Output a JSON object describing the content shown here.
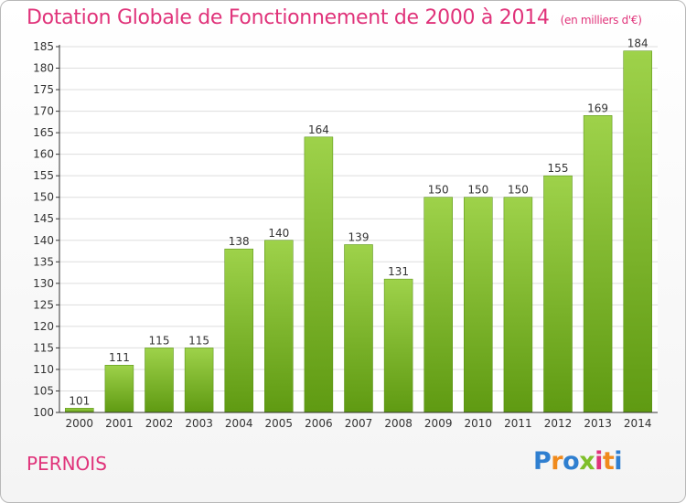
{
  "header": {
    "title": "Dotation Globale de Fonctionnement de 2000 à 2014",
    "subtitle": "(en milliers d'€)"
  },
  "footer": {
    "commune": "PERNOIS",
    "logo": {
      "letters": [
        "P",
        "r",
        "o",
        "x",
        "i",
        "t",
        "i"
      ],
      "colors": [
        "#2f7fd0",
        "#f08a1c",
        "#2f7fd0",
        "#7fbf2a",
        "#e0337a",
        "#f08a1c",
        "#2f7fd0"
      ]
    }
  },
  "chart_data": {
    "type": "bar",
    "categories": [
      "2000",
      "2001",
      "2002",
      "2003",
      "2004",
      "2005",
      "2006",
      "2007",
      "2008",
      "2009",
      "2010",
      "2011",
      "2012",
      "2013",
      "2014"
    ],
    "values": [
      101,
      111,
      115,
      115,
      138,
      140,
      164,
      139,
      131,
      150,
      150,
      150,
      155,
      169,
      184
    ],
    "data_labels": [
      "101",
      "111",
      "115",
      "115",
      "138",
      "140",
      "164",
      "139",
      "131",
      "150",
      "150",
      "150",
      "155",
      "169",
      "184"
    ],
    "yticks": [
      "100",
      "105",
      "110",
      "115",
      "120",
      "125",
      "130",
      "135",
      "140",
      "145",
      "150",
      "155",
      "160",
      "165",
      "170",
      "175",
      "180",
      "185"
    ],
    "ylim": [
      100,
      185
    ],
    "grid": true,
    "colors": {
      "bar_top": "#9ed24a",
      "bar_bottom": "#5f9a12",
      "axis": "#333333",
      "grid": "#dddddd"
    }
  }
}
